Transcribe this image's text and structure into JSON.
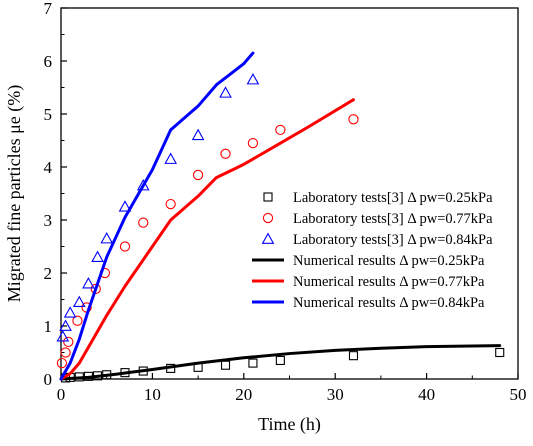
{
  "chart_data": {
    "type": "scatter",
    "xlabel": "Time (h)",
    "ylabel": "Migrated fine particles μe (%)",
    "xlim": [
      0,
      50
    ],
    "ylim": [
      0,
      7
    ],
    "xticks": [
      "0",
      "10",
      "20",
      "30",
      "40",
      "50"
    ],
    "yticks": [
      "0",
      "1",
      "2",
      "3",
      "4",
      "5",
      "6",
      "7"
    ],
    "grid": false,
    "legend_position": "right",
    "series": [
      {
        "name": "Laboratory tests[3] Δ pw=0.25kPa",
        "kind": "marker",
        "marker": "square",
        "color": "#000000",
        "x": [
          0.5,
          1,
          2,
          3,
          4,
          5,
          7,
          9,
          12,
          15,
          18,
          21,
          24,
          32,
          48
        ],
        "y": [
          0.02,
          0.03,
          0.04,
          0.05,
          0.06,
          0.08,
          0.12,
          0.15,
          0.2,
          0.22,
          0.26,
          0.3,
          0.35,
          0.44,
          0.5
        ]
      },
      {
        "name": "Laboratory tests[3] Δ pw=0.77kPa",
        "kind": "marker",
        "marker": "circle",
        "color": "#ff0000",
        "x": [
          0.1,
          0.5,
          0.8,
          1.8,
          2.8,
          3.8,
          4.8,
          7,
          9,
          12,
          15,
          18,
          21,
          24,
          32
        ],
        "y": [
          0.3,
          0.5,
          0.7,
          1.1,
          1.35,
          1.7,
          2.0,
          2.5,
          2.95,
          3.3,
          3.85,
          4.25,
          4.45,
          4.7,
          4.9
        ]
      },
      {
        "name": "Laboratory tests[3] Δ pw=0.84kPa",
        "kind": "marker",
        "marker": "triangle",
        "color": "#0000ff",
        "x": [
          0.2,
          0.5,
          1,
          2,
          3,
          4,
          5,
          7,
          9,
          12,
          15,
          18,
          21
        ],
        "y": [
          0.8,
          1.0,
          1.25,
          1.45,
          1.8,
          2.3,
          2.65,
          3.25,
          3.65,
          4.15,
          4.6,
          5.4,
          5.65
        ]
      },
      {
        "name": "Numerical results Δ pw=0.25kPa",
        "kind": "line",
        "color": "#000000",
        "x": [
          0,
          3,
          6,
          10,
          15,
          20,
          25,
          30,
          35,
          40,
          48
        ],
        "y": [
          0,
          0.03,
          0.09,
          0.18,
          0.3,
          0.4,
          0.48,
          0.54,
          0.58,
          0.61,
          0.63
        ]
      },
      {
        "name": "Numerical results Δ pw=0.77kPa",
        "kind": "line",
        "color": "#ff0000",
        "x": [
          0,
          1,
          2,
          3,
          5,
          7,
          10,
          12,
          15,
          17,
          20,
          24,
          27,
          32
        ],
        "y": [
          0,
          0.1,
          0.3,
          0.6,
          1.2,
          1.75,
          2.5,
          3.0,
          3.45,
          3.8,
          4.05,
          4.45,
          4.75,
          5.27
        ]
      },
      {
        "name": "Numerical results Δ pw=0.84kPa",
        "kind": "line",
        "color": "#0000ff",
        "x": [
          0,
          1,
          2,
          3,
          5,
          7,
          10,
          12,
          15,
          17,
          20,
          21
        ],
        "y": [
          0,
          0.3,
          0.75,
          1.3,
          2.3,
          3.05,
          3.95,
          4.7,
          5.15,
          5.55,
          5.95,
          6.15
        ]
      }
    ]
  }
}
